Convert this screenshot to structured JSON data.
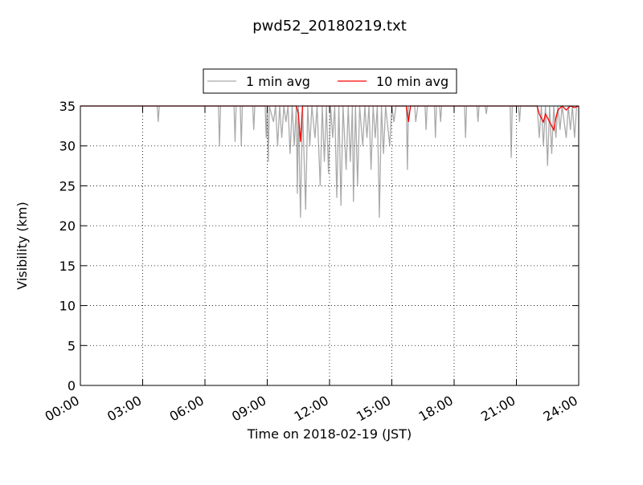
{
  "chart_data": {
    "type": "line",
    "title": "pwd52_20180219.txt",
    "xlabel": "Time on 2018-02-19 (JST)",
    "ylabel": "Visibility (km)",
    "xlim": [
      0,
      24
    ],
    "ylim": [
      0,
      35
    ],
    "xticks": [
      {
        "value": 0,
        "label": "00:00"
      },
      {
        "value": 3,
        "label": "03:00"
      },
      {
        "value": 6,
        "label": "06:00"
      },
      {
        "value": 9,
        "label": "09:00"
      },
      {
        "value": 12,
        "label": "12:00"
      },
      {
        "value": 15,
        "label": "15:00"
      },
      {
        "value": 18,
        "label": "18:00"
      },
      {
        "value": 21,
        "label": "21:00"
      },
      {
        "value": 24,
        "label": "24:00"
      }
    ],
    "yticks": [
      0,
      5,
      10,
      15,
      20,
      25,
      30,
      35
    ],
    "grid": true,
    "legend": "top",
    "series": [
      {
        "name": "1 min avg",
        "color": "#aaaaaa",
        "x": [
          0,
          3.7,
          3.75,
          3.8,
          6.65,
          6.7,
          6.75,
          7.4,
          7.45,
          7.5,
          7.7,
          7.75,
          7.8,
          8.3,
          8.35,
          8.4,
          8.9,
          8.95,
          9.0,
          9.05,
          9.1,
          9.3,
          9.4,
          9.5,
          9.6,
          9.7,
          9.8,
          9.9,
          10.0,
          10.1,
          10.2,
          10.3,
          10.4,
          10.45,
          10.5,
          10.6,
          10.7,
          10.85,
          10.95,
          11.05,
          11.15,
          11.3,
          11.4,
          11.55,
          11.65,
          11.75,
          11.85,
          11.95,
          12.05,
          12.15,
          12.25,
          12.35,
          12.45,
          12.55,
          12.65,
          12.8,
          12.9,
          13.0,
          13.1,
          13.15,
          13.25,
          13.35,
          13.45,
          13.6,
          13.7,
          13.8,
          13.9,
          14.0,
          14.1,
          14.2,
          14.3,
          14.4,
          14.5,
          14.6,
          14.7,
          14.9,
          15.0,
          15.1,
          15.2,
          15.7,
          15.75,
          15.8,
          16.1,
          16.15,
          16.25,
          16.6,
          16.65,
          16.7,
          17.05,
          17.1,
          17.15,
          17.3,
          17.35,
          17.4,
          18.5,
          18.55,
          18.6,
          19.1,
          19.15,
          19.2,
          19.5,
          19.55,
          19.6,
          20.7,
          20.75,
          20.8,
          21.1,
          21.15,
          21.2,
          22.0,
          22.1,
          22.2,
          22.3,
          22.4,
          22.5,
          22.6,
          22.7,
          22.8,
          22.9,
          23.0,
          23.1,
          23.2,
          23.4,
          23.5,
          23.6,
          23.7,
          23.8,
          23.9,
          24
        ],
        "values": [
          35,
          35,
          33,
          35,
          35,
          30,
          35,
          35,
          30.5,
          35,
          35,
          30,
          35,
          35,
          32,
          35,
          35,
          31,
          35,
          28,
          35,
          33,
          35,
          30,
          35,
          31,
          35,
          33,
          35,
          29,
          35,
          30,
          35,
          24,
          35,
          21,
          35,
          22,
          35,
          30,
          35,
          31,
          35,
          25,
          35,
          28,
          35,
          26.5,
          35,
          31,
          35,
          23.5,
          35,
          22.5,
          35,
          27,
          35,
          28,
          35,
          23,
          35,
          25,
          35,
          30,
          35,
          31,
          35,
          27,
          35,
          31,
          35,
          21,
          35,
          29,
          35,
          30,
          35,
          33,
          35,
          35,
          27,
          35,
          35,
          33,
          35,
          35,
          32,
          35,
          35,
          31,
          35,
          35,
          33,
          35,
          35,
          31,
          35,
          35,
          33,
          35,
          35,
          34,
          35,
          35,
          28.5,
          35,
          35,
          33,
          35,
          35,
          31,
          35,
          30,
          35,
          27.5,
          35,
          29,
          35,
          31,
          35,
          32,
          35,
          31,
          35,
          32,
          35,
          31,
          35,
          35
        ]
      },
      {
        "name": "10 min avg",
        "color": "#ff0000",
        "x": [
          0,
          10.4,
          10.5,
          10.6,
          10.7,
          15.7,
          15.8,
          15.9,
          22.0,
          22.1,
          22.3,
          22.4,
          22.6,
          22.8,
          22.9,
          23.0,
          23.2,
          23.4,
          23.6,
          23.8,
          24
        ],
        "values": [
          35,
          35,
          34,
          30.5,
          35,
          35,
          33,
          35,
          35,
          34,
          33,
          34,
          33,
          32,
          33.5,
          34.5,
          35,
          34.5,
          35,
          34.8,
          35
        ]
      }
    ]
  }
}
